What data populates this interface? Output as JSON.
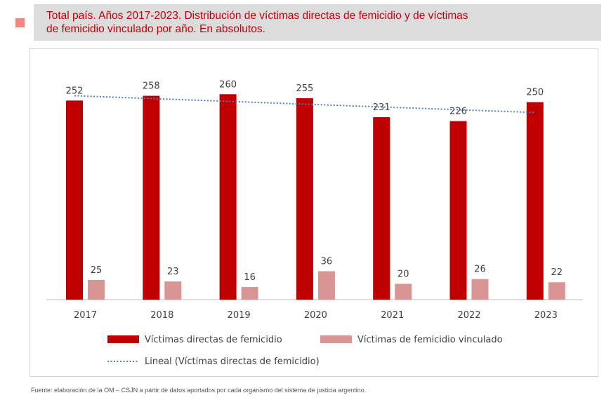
{
  "header": {
    "title_line1": "Total país. Años 2017-2023. Distribución de víctimas directas de femicidio y de víctimas",
    "title_line2": "de femicidio vinculado por año. En absolutos."
  },
  "chart_data": {
    "type": "bar",
    "title": "Total país. Años 2017-2023. Distribución de víctimas directas de femicidio y de víctimas de femicidio vinculado por año. En absolutos.",
    "categories": [
      "2017",
      "2018",
      "2019",
      "2020",
      "2021",
      "2022",
      "2023"
    ],
    "series": [
      {
        "name": "Víctimas directas de femicidio",
        "values": [
          252,
          258,
          260,
          255,
          231,
          226,
          250
        ],
        "color": "#c00000"
      },
      {
        "name": "Víctimas de femicidio vinculado",
        "values": [
          25,
          23,
          16,
          36,
          20,
          26,
          22
        ],
        "color": "#d99594"
      }
    ],
    "trendline": {
      "name": "Lineal (Víctimas directas de femicidio)",
      "type": "linear",
      "of_series": "Víctimas directas de femicidio",
      "color": "#4f81bd"
    },
    "xlabel": "",
    "ylabel": "",
    "ylim": [
      0,
      280
    ],
    "grid": false,
    "legend": "bottom"
  },
  "footer": {
    "source": "Fuente: elaboración de la OM – CSJN a partir de datos aportados por cada organismo del sistema de justicia argentino."
  }
}
